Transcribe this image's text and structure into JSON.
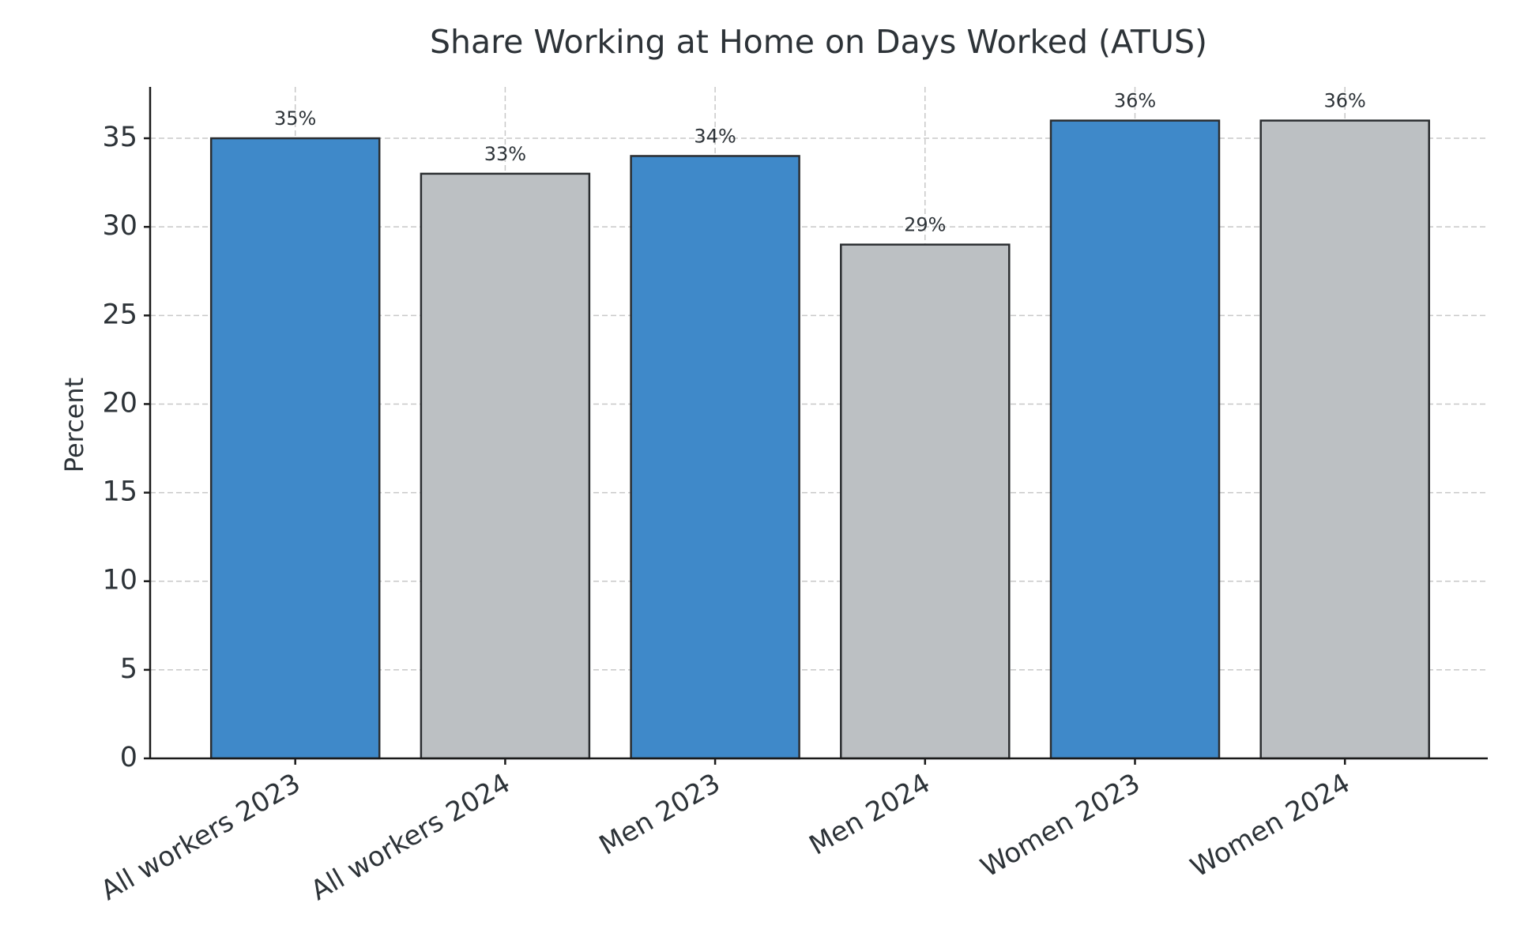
{
  "chart_data": {
    "type": "bar",
    "title": "Share Working at Home on Days Worked (ATUS)",
    "y_label": "Percent",
    "categories": [
      "All workers 2023",
      "All workers 2024",
      "Men 2023",
      "Men 2024",
      "Women 2023",
      "Women 2024"
    ],
    "values": [
      35,
      33,
      34,
      29,
      36,
      36
    ],
    "value_labels": [
      "35%",
      "33%",
      "34%",
      "29%",
      "36%",
      "36%"
    ],
    "colors": [
      "#3f89c9",
      "#bcc0c3",
      "#3f89c9",
      "#bcc0c3",
      "#3f89c9",
      "#bcc0c3"
    ],
    "ylim": [
      0,
      37.9
    ],
    "yticks": [
      0,
      5,
      10,
      15,
      20,
      25,
      30,
      35
    ],
    "grid": true
  }
}
